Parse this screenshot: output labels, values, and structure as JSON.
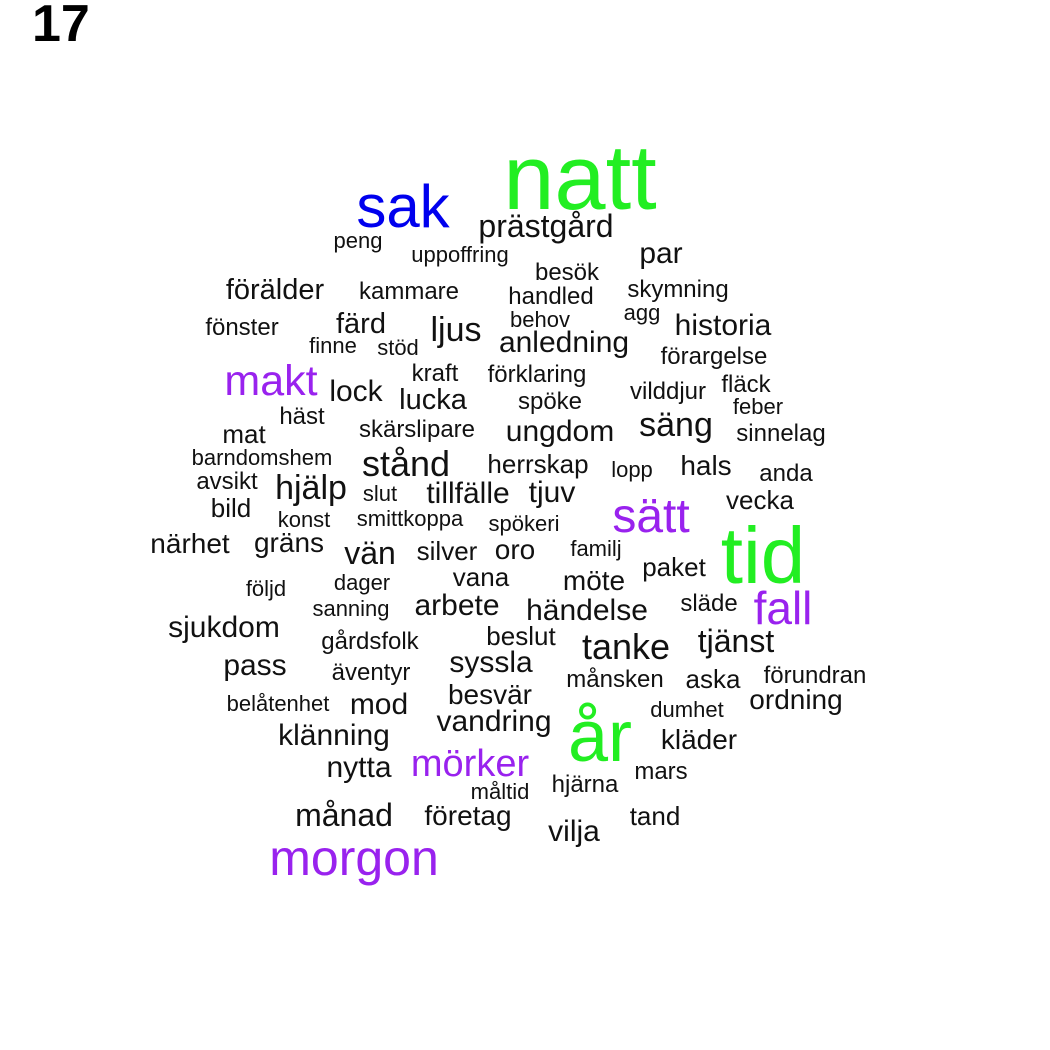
{
  "label": "17",
  "colors": {
    "green": "#22ee22",
    "blue": "#0000ee",
    "purple": "#9922ee",
    "black": "#111111"
  },
  "words": [
    {
      "text": "natt",
      "color": "green"
    },
    {
      "text": "sak",
      "color": "blue"
    },
    {
      "text": "prästgård",
      "color": "black"
    },
    {
      "text": "peng",
      "color": "black"
    },
    {
      "text": "uppoffring",
      "color": "black"
    },
    {
      "text": "par",
      "color": "black"
    },
    {
      "text": "besök",
      "color": "black"
    },
    {
      "text": "förälder",
      "color": "black"
    },
    {
      "text": "kammare",
      "color": "black"
    },
    {
      "text": "handled",
      "color": "black"
    },
    {
      "text": "skymning",
      "color": "black"
    },
    {
      "text": "agg",
      "color": "black"
    },
    {
      "text": "fönster",
      "color": "black"
    },
    {
      "text": "färd",
      "color": "black"
    },
    {
      "text": "ljus",
      "color": "black"
    },
    {
      "text": "behov",
      "color": "black"
    },
    {
      "text": "historia",
      "color": "black"
    },
    {
      "text": "finne",
      "color": "black"
    },
    {
      "text": "stöd",
      "color": "black"
    },
    {
      "text": "anledning",
      "color": "black"
    },
    {
      "text": "förargelse",
      "color": "black"
    },
    {
      "text": "makt",
      "color": "purple"
    },
    {
      "text": "kraft",
      "color": "black"
    },
    {
      "text": "förklaring",
      "color": "black"
    },
    {
      "text": "lock",
      "color": "black"
    },
    {
      "text": "vilddjur",
      "color": "black"
    },
    {
      "text": "fläck",
      "color": "black"
    },
    {
      "text": "lucka",
      "color": "black"
    },
    {
      "text": "spöke",
      "color": "black"
    },
    {
      "text": "feber",
      "color": "black"
    },
    {
      "text": "häst",
      "color": "black"
    },
    {
      "text": "mat",
      "color": "black"
    },
    {
      "text": "skärslipare",
      "color": "black"
    },
    {
      "text": "ungdom",
      "color": "black"
    },
    {
      "text": "säng",
      "color": "black"
    },
    {
      "text": "sinnelag",
      "color": "black"
    },
    {
      "text": "barndomshem",
      "color": "black"
    },
    {
      "text": "stånd",
      "color": "black"
    },
    {
      "text": "herrskap",
      "color": "black"
    },
    {
      "text": "lopp",
      "color": "black"
    },
    {
      "text": "hals",
      "color": "black"
    },
    {
      "text": "anda",
      "color": "black"
    },
    {
      "text": "avsikt",
      "color": "black"
    },
    {
      "text": "hjälp",
      "color": "black"
    },
    {
      "text": "slut",
      "color": "black"
    },
    {
      "text": "tillfälle",
      "color": "black"
    },
    {
      "text": "tjuv",
      "color": "black"
    },
    {
      "text": "vecka",
      "color": "black"
    },
    {
      "text": "bild",
      "color": "black"
    },
    {
      "text": "sätt",
      "color": "purple"
    },
    {
      "text": "konst",
      "color": "black"
    },
    {
      "text": "smittkoppa",
      "color": "black"
    },
    {
      "text": "spökeri",
      "color": "black"
    },
    {
      "text": "tid",
      "color": "green"
    },
    {
      "text": "närhet",
      "color": "black"
    },
    {
      "text": "gräns",
      "color": "black"
    },
    {
      "text": "vän",
      "color": "black"
    },
    {
      "text": "silver",
      "color": "black"
    },
    {
      "text": "oro",
      "color": "black"
    },
    {
      "text": "familj",
      "color": "black"
    },
    {
      "text": "paket",
      "color": "black"
    },
    {
      "text": "följd",
      "color": "black"
    },
    {
      "text": "dager",
      "color": "black"
    },
    {
      "text": "vana",
      "color": "black"
    },
    {
      "text": "möte",
      "color": "black"
    },
    {
      "text": "sanning",
      "color": "black"
    },
    {
      "text": "arbete",
      "color": "black"
    },
    {
      "text": "händelse",
      "color": "black"
    },
    {
      "text": "släde",
      "color": "black"
    },
    {
      "text": "fall",
      "color": "purple"
    },
    {
      "text": "sjukdom",
      "color": "black"
    },
    {
      "text": "gårdsfolk",
      "color": "black"
    },
    {
      "text": "beslut",
      "color": "black"
    },
    {
      "text": "tanke",
      "color": "black"
    },
    {
      "text": "tjänst",
      "color": "black"
    },
    {
      "text": "pass",
      "color": "black"
    },
    {
      "text": "äventyr",
      "color": "black"
    },
    {
      "text": "syssla",
      "color": "black"
    },
    {
      "text": "månsken",
      "color": "black"
    },
    {
      "text": "aska",
      "color": "black"
    },
    {
      "text": "förundran",
      "color": "black"
    },
    {
      "text": "belåtenhet",
      "color": "black"
    },
    {
      "text": "mod",
      "color": "black"
    },
    {
      "text": "besvär",
      "color": "black"
    },
    {
      "text": "ordning",
      "color": "black"
    },
    {
      "text": "dumhet",
      "color": "black"
    },
    {
      "text": "år",
      "color": "green"
    },
    {
      "text": "klänning",
      "color": "black"
    },
    {
      "text": "vandring",
      "color": "black"
    },
    {
      "text": "kläder",
      "color": "black"
    },
    {
      "text": "nytta",
      "color": "black"
    },
    {
      "text": "mörker",
      "color": "purple"
    },
    {
      "text": "mars",
      "color": "black"
    },
    {
      "text": "hjärna",
      "color": "black"
    },
    {
      "text": "måltid",
      "color": "black"
    },
    {
      "text": "månad",
      "color": "black"
    },
    {
      "text": "företag",
      "color": "black"
    },
    {
      "text": "tand",
      "color": "black"
    },
    {
      "text": "vilja",
      "color": "black"
    },
    {
      "text": "morgon",
      "color": "purple"
    }
  ]
}
